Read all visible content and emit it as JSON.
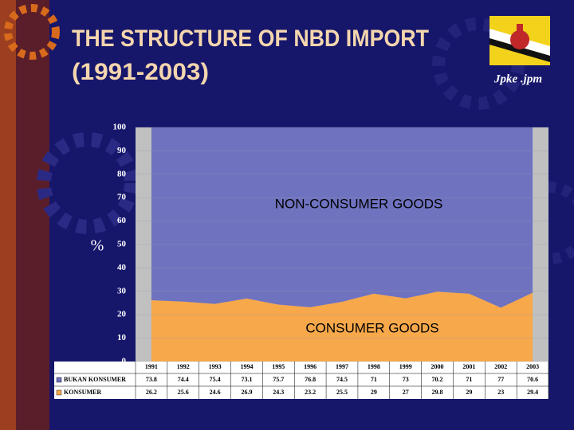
{
  "chart_data": {
    "type": "area",
    "stacked": true,
    "title": "THE STRUCTURE OF NBD IMPORT",
    "subtitle": "(1991-2003)",
    "logo_caption": "Jpke .jpm",
    "ylabel": "%",
    "annotations": [
      "NON-CONSUMER GOODS",
      "CONSUMER GOODS"
    ],
    "categories": [
      "1991",
      "1992",
      "1993",
      "1994",
      "1995",
      "1996",
      "1997",
      "1998",
      "1999",
      "2000",
      "2001",
      "2002",
      "2003"
    ],
    "series": [
      {
        "name": "KONSUMER",
        "color": "#f7a84a",
        "values": [
          26.2,
          25.6,
          24.6,
          26.9,
          24.3,
          23.2,
          25.5,
          29,
          27,
          29.8,
          29,
          23,
          29.4
        ]
      },
      {
        "name": "BUKAN KONSUMER",
        "color": "#6e72bf",
        "values": [
          73.8,
          74.4,
          75.4,
          73.1,
          75.7,
          76.8,
          74.5,
          71,
          73,
          70.2,
          71,
          77,
          70.6
        ]
      }
    ],
    "ylim": [
      0,
      100
    ],
    "yticks": [
      0,
      10,
      20,
      30,
      40,
      50,
      60,
      70,
      80,
      90,
      100
    ],
    "grid": true
  }
}
